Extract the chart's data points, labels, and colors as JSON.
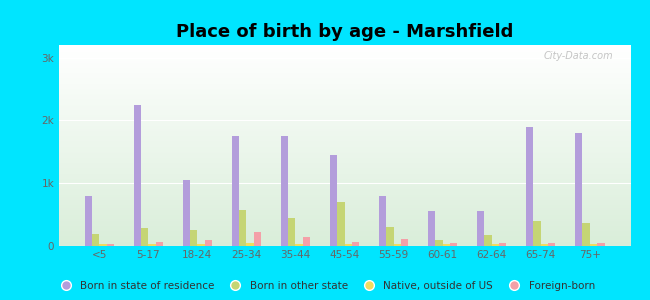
{
  "title": "Place of birth by age - Marshfield",
  "background_color": "#00e5ff",
  "categories": [
    "<5",
    "5-17",
    "18-24",
    "25-34",
    "35-44",
    "45-54",
    "55-59",
    "60-61",
    "62-64",
    "65-74",
    "75+"
  ],
  "series": {
    "Born in state of residence": {
      "color": "#b39ddb",
      "values": [
        800,
        2250,
        1050,
        1750,
        1750,
        1450,
        800,
        550,
        550,
        1900,
        1800
      ]
    },
    "Born in other state": {
      "color": "#c5d574",
      "values": [
        185,
        290,
        250,
        580,
        440,
        700,
        310,
        90,
        175,
        400,
        360
      ]
    },
    "Native, outside of US": {
      "color": "#f0dc60",
      "values": [
        25,
        25,
        25,
        40,
        25,
        25,
        25,
        25,
        25,
        25,
        25
      ]
    },
    "Foreign-born": {
      "color": "#f4a0a8",
      "values": [
        35,
        70,
        100,
        215,
        145,
        70,
        110,
        50,
        50,
        45,
        55
      ]
    }
  },
  "ylim": [
    0,
    3200
  ],
  "yticks": [
    0,
    1000,
    2000,
    3000
  ],
  "ytick_labels": [
    "0",
    "1k",
    "2k",
    "3k"
  ],
  "bar_width": 0.15,
  "title_fontsize": 13,
  "legend_fontsize": 7.5,
  "tick_fontsize": 7.5,
  "watermark": "City-Data.com"
}
